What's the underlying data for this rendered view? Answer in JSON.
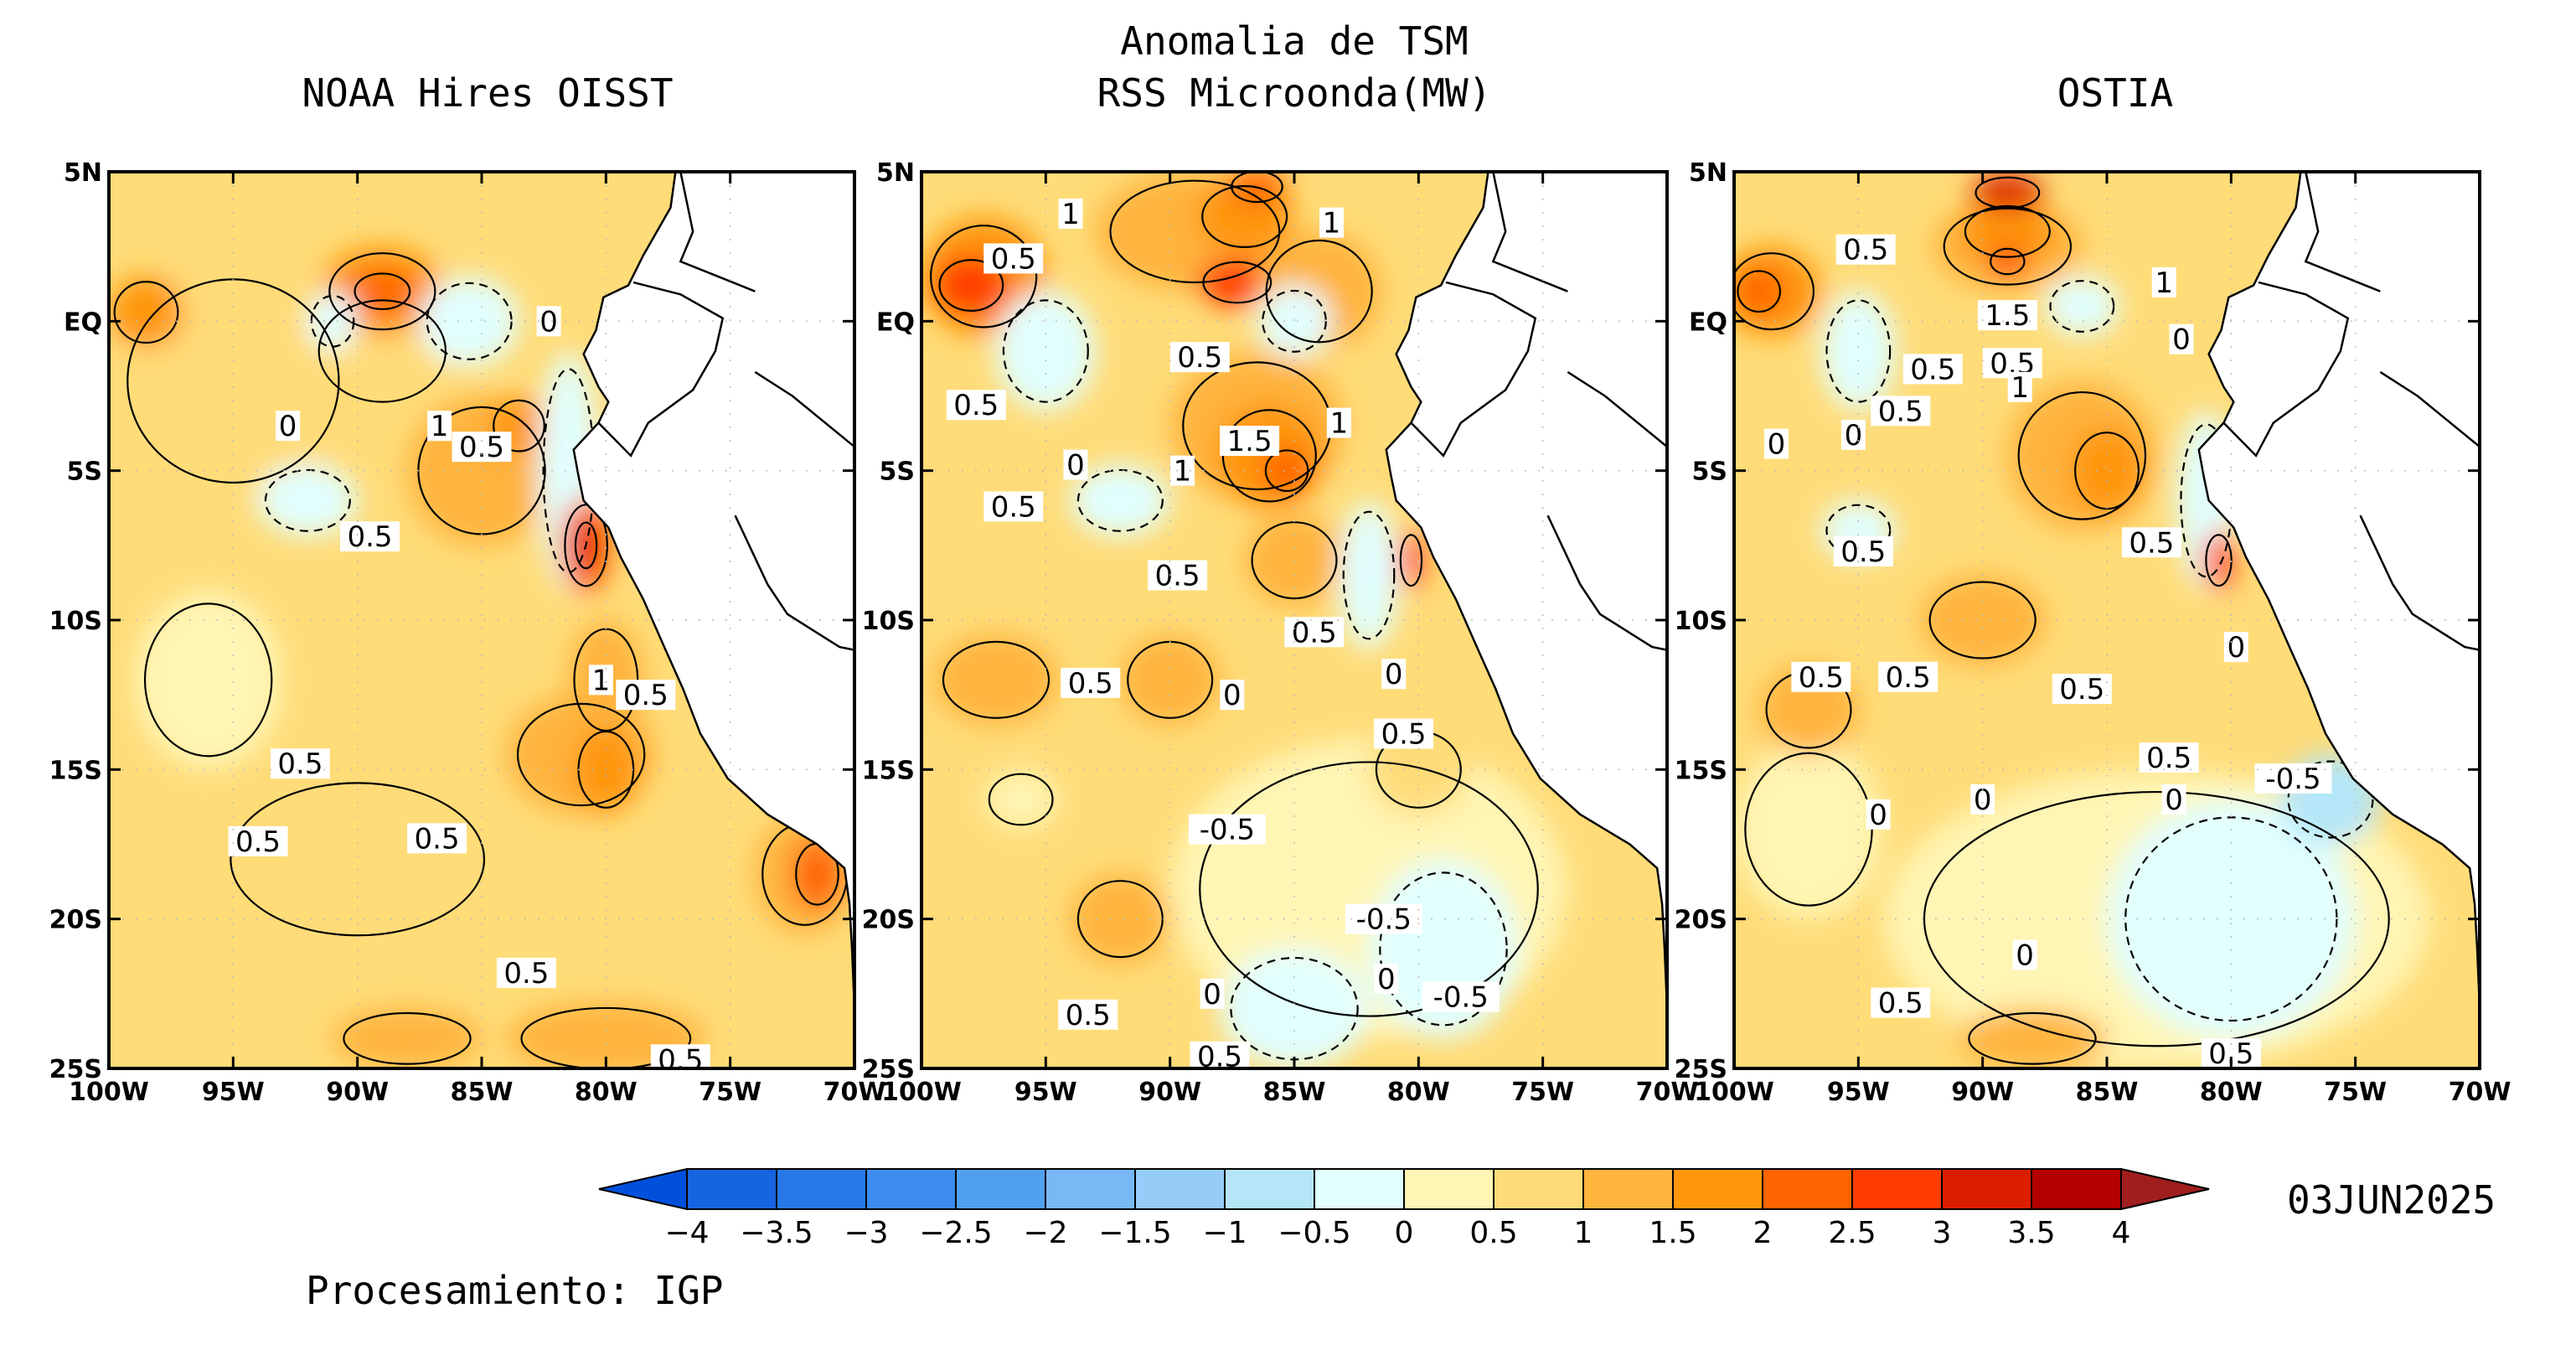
{
  "title": {
    "line1": "Anomalia de TSM",
    "line2": "RSS Microonda(MW)"
  },
  "panels": [
    {
      "title": "NOAA Hires OISST",
      "contour_labels": [
        {
          "text": "0.5",
          "lon": -89.5,
          "lat": -7.2
        },
        {
          "text": "0",
          "lon": -92.8,
          "lat": -3.5
        },
        {
          "text": "1",
          "lon": -86.7,
          "lat": -3.5
        },
        {
          "text": "0.5",
          "lon": -85.0,
          "lat": -4.2
        },
        {
          "text": "0",
          "lon": -82.3,
          "lat": 0.0
        },
        {
          "text": "1",
          "lon": -80.2,
          "lat": -12.0
        },
        {
          "text": "0.5",
          "lon": -78.4,
          "lat": -12.5
        },
        {
          "text": "0.5",
          "lon": -92.3,
          "lat": -14.8
        },
        {
          "text": "0.5",
          "lon": -94.0,
          "lat": -17.4
        },
        {
          "text": "0.5",
          "lon": -86.8,
          "lat": -17.3
        },
        {
          "text": "0.5",
          "lon": -83.2,
          "lat": -21.8
        },
        {
          "text": "0.5",
          "lon": -77.0,
          "lat": -24.7
        }
      ],
      "blobs": [
        {
          "lon": -95,
          "lat": -2,
          "rx": 5,
          "ry": 4,
          "cls": "0.5"
        },
        {
          "lon": -89,
          "lat": -1,
          "rx": 3,
          "ry": 2,
          "cls": "0.5"
        },
        {
          "lon": -89,
          "lat": 1,
          "rx": 2.5,
          "ry": 1.5,
          "cls": "1.5"
        },
        {
          "lon": -89,
          "lat": 1,
          "rx": 1.3,
          "ry": 0.7,
          "cls": "2"
        },
        {
          "lon": -98.5,
          "lat": 0.3,
          "rx": 1.5,
          "ry": 1.2,
          "cls": "1.5"
        },
        {
          "lon": -85,
          "lat": -5,
          "rx": 3,
          "ry": 2.5,
          "cls": "1"
        },
        {
          "lon": -83.5,
          "lat": -3.5,
          "rx": 1.2,
          "ry": 1,
          "cls": "1.5"
        },
        {
          "lon": -92,
          "lat": -6,
          "rx": 2,
          "ry": 1.2,
          "cls": "-0.5"
        },
        {
          "lon": -91,
          "lat": 0,
          "rx": 1,
          "ry": 1,
          "cls": "-0.5"
        },
        {
          "lon": -85.5,
          "lat": 0,
          "rx": 2,
          "ry": 1.5,
          "cls": "-0.5"
        },
        {
          "lon": -81.5,
          "lat": -5,
          "rx": 1.2,
          "ry": 4,
          "cls": "-0.5"
        },
        {
          "lon": -80.8,
          "lat": -7.5,
          "rx": 1,
          "ry": 1.6,
          "cls": "2"
        },
        {
          "lon": -80.8,
          "lat": -7.5,
          "rx": 0.5,
          "ry": 0.9,
          "cls": "3"
        },
        {
          "lon": -80,
          "lat": -12,
          "rx": 1.5,
          "ry": 2,
          "cls": "1"
        },
        {
          "lon": -81,
          "lat": -14.5,
          "rx": 3,
          "ry": 2,
          "cls": "1"
        },
        {
          "lon": -80,
          "lat": -15,
          "rx": 1.3,
          "ry": 1.5,
          "cls": "1.5"
        },
        {
          "lon": -72,
          "lat": -18.5,
          "rx": 2,
          "ry": 2,
          "cls": "1"
        },
        {
          "lon": -71.5,
          "lat": -18.5,
          "rx": 1,
          "ry": 1.2,
          "cls": "2"
        },
        {
          "lon": -90,
          "lat": -18,
          "rx": 6,
          "ry": 3,
          "cls": "0.5"
        },
        {
          "lon": -80,
          "lat": -24,
          "rx": 4,
          "ry": 1.2,
          "cls": "1"
        },
        {
          "lon": -88,
          "lat": -24,
          "rx": 3,
          "ry": 1,
          "cls": "1"
        },
        {
          "lon": -96,
          "lat": -12,
          "rx": 3,
          "ry": 3,
          "cls": "0"
        }
      ]
    },
    {
      "title": "",
      "contour_labels": [
        {
          "text": "1",
          "lon": -94.0,
          "lat": 3.6
        },
        {
          "text": "0.5",
          "lon": -96.3,
          "lat": 2.1
        },
        {
          "text": "0.5",
          "lon": -97.8,
          "lat": -2.8
        },
        {
          "text": "1",
          "lon": -83.5,
          "lat": 3.3
        },
        {
          "text": "0.5",
          "lon": -88.8,
          "lat": -1.2
        },
        {
          "text": "1.5",
          "lon": -86.8,
          "lat": -4.0
        },
        {
          "text": "1",
          "lon": -83.2,
          "lat": -3.4
        },
        {
          "text": "0",
          "lon": -93.8,
          "lat": -4.8
        },
        {
          "text": "0.5",
          "lon": -96.3,
          "lat": -6.2
        },
        {
          "text": "1",
          "lon": -89.5,
          "lat": -5.0
        },
        {
          "text": "0.5",
          "lon": -89.7,
          "lat": -8.5
        },
        {
          "text": "0.5",
          "lon": -84.2,
          "lat": -10.4
        },
        {
          "text": "0.5",
          "lon": -93.2,
          "lat": -12.1
        },
        {
          "text": "0",
          "lon": -87.5,
          "lat": -12.5
        },
        {
          "text": "0",
          "lon": -81.0,
          "lat": -11.8
        },
        {
          "text": "0.5",
          "lon": -80.6,
          "lat": -13.8
        },
        {
          "text": "-0.5",
          "lon": -87.7,
          "lat": -17.0
        },
        {
          "text": "-0.5",
          "lon": -81.4,
          "lat": -20.0
        },
        {
          "text": "0",
          "lon": -81.3,
          "lat": -22.0
        },
        {
          "text": "-0.5",
          "lon": -78.3,
          "lat": -22.6
        },
        {
          "text": "0.5",
          "lon": -93.3,
          "lat": -23.2
        },
        {
          "text": "0",
          "lon": -88.3,
          "lat": -22.5
        },
        {
          "text": "0.5",
          "lon": -88.0,
          "lat": -24.6
        }
      ],
      "blobs": [
        {
          "lon": -97.5,
          "lat": 1.5,
          "rx": 2.5,
          "ry": 2,
          "cls": "1.5"
        },
        {
          "lon": -98,
          "lat": 1.2,
          "rx": 1.5,
          "ry": 1,
          "cls": "2.5"
        },
        {
          "lon": -89,
          "lat": 3,
          "rx": 4,
          "ry": 2,
          "cls": "1"
        },
        {
          "lon": -87,
          "lat": 3.5,
          "rx": 2,
          "ry": 1.2,
          "cls": "1.5"
        },
        {
          "lon": -86.5,
          "lat": 4.5,
          "rx": 1.2,
          "ry": 0.6,
          "cls": "2"
        },
        {
          "lon": -87.3,
          "lat": 1.3,
          "rx": 1.6,
          "ry": 0.8,
          "cls": "2.5"
        },
        {
          "lon": -84,
          "lat": 1,
          "rx": 2.5,
          "ry": 2,
          "cls": "1"
        },
        {
          "lon": -86.5,
          "lat": -3.5,
          "rx": 3.5,
          "ry": 2.5,
          "cls": "1"
        },
        {
          "lon": -86,
          "lat": -4.5,
          "rx": 2.2,
          "ry": 1.8,
          "cls": "1.5"
        },
        {
          "lon": -85.3,
          "lat": -5,
          "rx": 1,
          "ry": 0.8,
          "cls": "2"
        },
        {
          "lon": -85,
          "lat": -8,
          "rx": 2,
          "ry": 1.5,
          "cls": "1"
        },
        {
          "lon": -95,
          "lat": -1,
          "rx": 2,
          "ry": 2,
          "cls": "-0.5"
        },
        {
          "lon": -92,
          "lat": -6,
          "rx": 2,
          "ry": 1.2,
          "cls": "-0.5"
        },
        {
          "lon": -85,
          "lat": 0,
          "rx": 1.5,
          "ry": 1.2,
          "cls": "-0.5"
        },
        {
          "lon": -82,
          "lat": -8.5,
          "rx": 1.2,
          "ry": 2.5,
          "cls": "-0.5"
        },
        {
          "lon": -80.3,
          "lat": -8,
          "rx": 0.5,
          "ry": 1,
          "cls": "2.5"
        },
        {
          "lon": -82,
          "lat": -19,
          "rx": 8,
          "ry": 5,
          "cls": "0"
        },
        {
          "lon": -79,
          "lat": -21,
          "rx": 3,
          "ry": 3,
          "cls": "-0.5"
        },
        {
          "lon": -85,
          "lat": -23,
          "rx": 3,
          "ry": 2,
          "cls": "-0.5"
        },
        {
          "lon": -80,
          "lat": -15,
          "rx": 2,
          "ry": 1.5,
          "cls": "0.5"
        },
        {
          "lon": -96,
          "lat": -16,
          "rx": 1.5,
          "ry": 1,
          "cls": "0"
        },
        {
          "lon": -92,
          "lat": -20,
          "rx": 2,
          "ry": 1.5,
          "cls": "1"
        },
        {
          "lon": -97,
          "lat": -12,
          "rx": 2.5,
          "ry": 1.5,
          "cls": "1"
        },
        {
          "lon": -90,
          "lat": -12,
          "rx": 2,
          "ry": 1.5,
          "cls": "1"
        }
      ]
    },
    {
      "title": "OSTIA",
      "contour_labels": [
        {
          "text": "0.5",
          "lon": -94.7,
          "lat": 2.4
        },
        {
          "text": "1",
          "lon": -82.7,
          "lat": 1.3
        },
        {
          "text": "1.5",
          "lon": -89.0,
          "lat": 0.2
        },
        {
          "text": "0.5",
          "lon": -92.0,
          "lat": -1.6
        },
        {
          "text": "0.5",
          "lon": -88.8,
          "lat": -1.4
        },
        {
          "text": "1",
          "lon": -88.5,
          "lat": -2.2
        },
        {
          "text": "0",
          "lon": -82.0,
          "lat": -0.6
        },
        {
          "text": "0.5",
          "lon": -93.3,
          "lat": -3.0
        },
        {
          "text": "0",
          "lon": -98.3,
          "lat": -4.1
        },
        {
          "text": "0",
          "lon": -95.2,
          "lat": -3.8
        },
        {
          "text": "0.5",
          "lon": -94.8,
          "lat": -7.7
        },
        {
          "text": "0.5",
          "lon": -83.2,
          "lat": -7.4
        },
        {
          "text": "0",
          "lon": -79.8,
          "lat": -10.9
        },
        {
          "text": "0.5",
          "lon": -96.5,
          "lat": -11.9
        },
        {
          "text": "0.5",
          "lon": -93.0,
          "lat": -11.9
        },
        {
          "text": "0.5",
          "lon": -86.0,
          "lat": -12.3
        },
        {
          "text": "0.5",
          "lon": -82.5,
          "lat": -14.6
        },
        {
          "text": "-0.5",
          "lon": -77.5,
          "lat": -15.3
        },
        {
          "text": "0",
          "lon": -94.2,
          "lat": -16.5
        },
        {
          "text": "0",
          "lon": -90.0,
          "lat": -16.0
        },
        {
          "text": "0",
          "lon": -82.3,
          "lat": -16.0
        },
        {
          "text": "0",
          "lon": -88.3,
          "lat": -21.2
        },
        {
          "text": "0.5",
          "lon": -93.3,
          "lat": -22.8
        },
        {
          "text": "0.5",
          "lon": -80.0,
          "lat": -24.5
        }
      ],
      "blobs": [
        {
          "lon": -98.5,
          "lat": 1,
          "rx": 2,
          "ry": 1.5,
          "cls": "1.5"
        },
        {
          "lon": -99,
          "lat": 1,
          "rx": 1,
          "ry": 0.8,
          "cls": "2"
        },
        {
          "lon": -89,
          "lat": 2.5,
          "rx": 3,
          "ry": 1.5,
          "cls": "1"
        },
        {
          "lon": -89,
          "lat": 3,
          "rx": 2,
          "ry": 1,
          "cls": "1.5"
        },
        {
          "lon": -89,
          "lat": 4.3,
          "rx": 1.5,
          "ry": 0.6,
          "cls": "3"
        },
        {
          "lon": -89,
          "lat": 2,
          "rx": 0.8,
          "ry": 0.5,
          "cls": "2.5"
        },
        {
          "lon": -86,
          "lat": -4.5,
          "rx": 3,
          "ry": 2.5,
          "cls": "1"
        },
        {
          "lon": -85,
          "lat": -5,
          "rx": 1.5,
          "ry": 1.5,
          "cls": "1.5"
        },
        {
          "lon": -95,
          "lat": -1,
          "rx": 1.5,
          "ry": 2,
          "cls": "-0.5"
        },
        {
          "lon": -86,
          "lat": 0.5,
          "rx": 1.5,
          "ry": 1,
          "cls": "-0.5"
        },
        {
          "lon": -81,
          "lat": -6,
          "rx": 1.2,
          "ry": 3,
          "cls": "-0.5"
        },
        {
          "lon": -80.5,
          "lat": -8,
          "rx": 0.6,
          "ry": 1,
          "cls": "2.5"
        },
        {
          "lon": -83,
          "lat": -20,
          "rx": 11,
          "ry": 5,
          "cls": "0"
        },
        {
          "lon": -80,
          "lat": -20,
          "rx": 5,
          "ry": 4,
          "cls": "-0.5"
        },
        {
          "lon": -76,
          "lat": -16,
          "rx": 2,
          "ry": 1.5,
          "cls": "-1"
        },
        {
          "lon": -97,
          "lat": -17,
          "rx": 3,
          "ry": 3,
          "cls": "0"
        },
        {
          "lon": -95,
          "lat": -7,
          "rx": 1.5,
          "ry": 1,
          "cls": "-0.5"
        },
        {
          "lon": -97,
          "lat": -13,
          "rx": 2,
          "ry": 1.5,
          "cls": "1"
        },
        {
          "lon": -90,
          "lat": -10,
          "rx": 2.5,
          "ry": 1.5,
          "cls": "1"
        },
        {
          "lon": -88,
          "lat": -24,
          "rx": 3,
          "ry": 1,
          "cls": "1"
        }
      ]
    }
  ],
  "axes": {
    "x_ticks": [
      "100W",
      "95W",
      "90W",
      "85W",
      "80W",
      "75W",
      "70W"
    ],
    "y_ticks": [
      "5N",
      "EQ",
      "5S",
      "10S",
      "15S",
      "20S",
      "25S"
    ],
    "lon_range": [
      -100,
      -70
    ],
    "lat_range": [
      -25,
      5
    ]
  },
  "colorbar": {
    "labels": [
      "-4",
      "-3.5",
      "-3",
      "-2.5",
      "-2",
      "-1.5",
      "-1",
      "-0.5",
      "0",
      "0.5",
      "1",
      "1.5",
      "2",
      "2.5",
      "3",
      "3.5",
      "4"
    ],
    "colors": [
      "#1664e0",
      "#2878e8",
      "#3c8cf0",
      "#50a0f0",
      "#78b8f5",
      "#96ccf8",
      "#b4e6f8",
      "#e1ffff",
      "#fff5b4",
      "#ffdc78",
      "#ffb43c",
      "#ff960a",
      "#ff6400",
      "#ff3c00",
      "#dc1e00",
      "#b40000"
    ],
    "low_end_color": "#0050dc",
    "high_end_color": "#a01e1e"
  },
  "date": "03JUN2025",
  "credit": "Procesamiento: IGP"
}
